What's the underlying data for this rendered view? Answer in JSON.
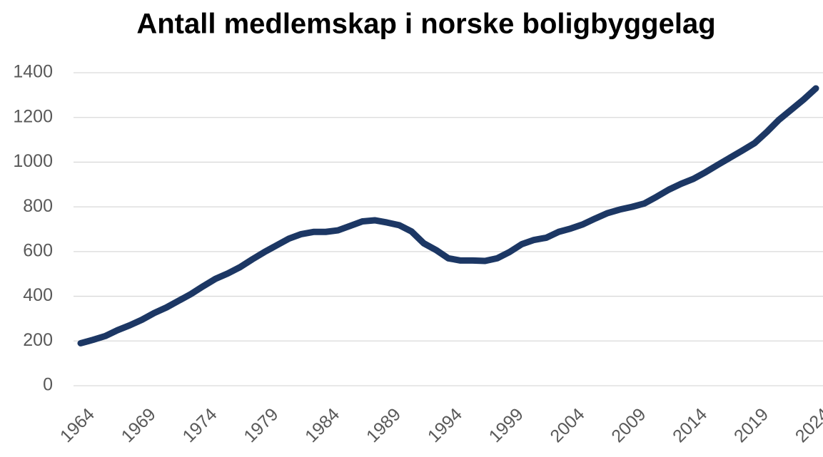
{
  "chart_data": {
    "type": "line",
    "title": "Antall medlemskap i norske boligbyggelag",
    "x": [
      1964,
      1965,
      1966,
      1967,
      1968,
      1969,
      1970,
      1971,
      1972,
      1973,
      1974,
      1975,
      1976,
      1977,
      1978,
      1979,
      1980,
      1981,
      1982,
      1983,
      1984,
      1985,
      1986,
      1987,
      1988,
      1989,
      1990,
      1991,
      1992,
      1993,
      1994,
      1995,
      1996,
      1997,
      1998,
      1999,
      2000,
      2001,
      2002,
      2003,
      2004,
      2005,
      2006,
      2007,
      2008,
      2009,
      2010,
      2011,
      2012,
      2013,
      2014,
      2015,
      2016,
      2017,
      2018,
      2019,
      2020,
      2021,
      2022,
      2023,
      2024
    ],
    "series": [
      {
        "name": "Medlemskap",
        "color": "#1c3764",
        "values": [
          190,
          205,
          222,
          248,
          270,
          295,
          325,
          350,
          380,
          410,
          445,
          478,
          502,
          530,
          565,
          598,
          628,
          658,
          678,
          688,
          688,
          695,
          715,
          735,
          740,
          730,
          718,
          690,
          637,
          607,
          570,
          560,
          560,
          558,
          570,
          598,
          633,
          652,
          662,
          688,
          703,
          722,
          748,
          772,
          788,
          800,
          815,
          845,
          877,
          903,
          925,
          955,
          988,
          1020,
          1052,
          1085,
          1135,
          1190,
          1235,
          1280,
          1330
        ]
      }
    ],
    "xlim": [
      1964,
      2024
    ],
    "xticks": [
      1964,
      1969,
      1974,
      1979,
      1984,
      1989,
      1994,
      1999,
      2004,
      2009,
      2014,
      2019,
      2024
    ],
    "ylim": [
      0,
      1400
    ],
    "yticks": [
      0,
      200,
      400,
      600,
      800,
      1000,
      1200,
      1400
    ],
    "grid": true
  }
}
